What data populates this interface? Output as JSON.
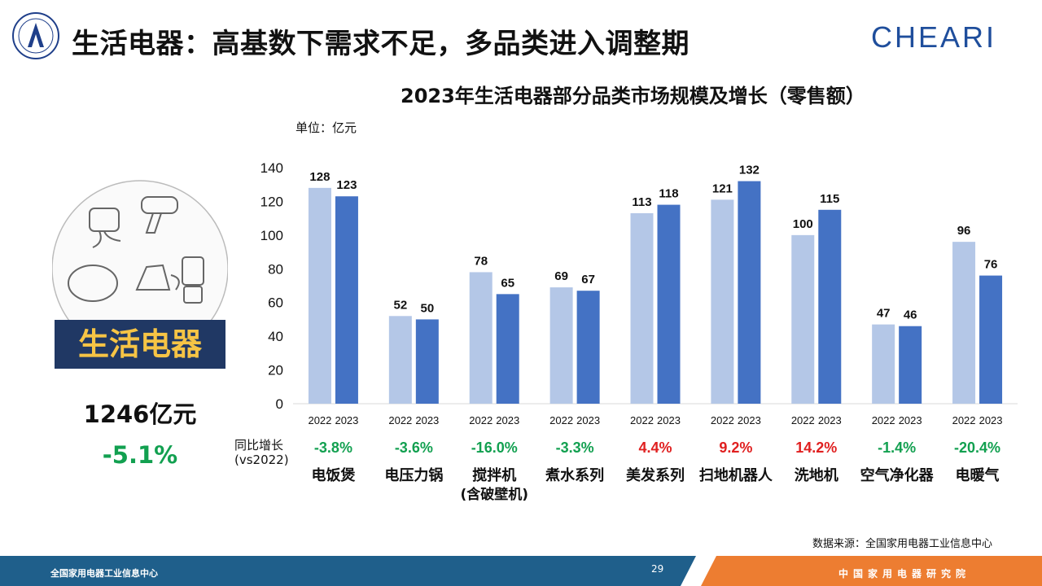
{
  "header": {
    "title": "生活电器：高基数下需求不足，多品类进入调整期",
    "brand": "CHEARI"
  },
  "left_panel": {
    "category": "生活电器",
    "total": "1246亿元",
    "growth": "-5.1%"
  },
  "yoy_label_line1": "同比增长",
  "yoy_label_line2": "(vs2022)",
  "source_note": "数据来源：全国家用电器工业信息中心",
  "footer": {
    "left_text": "全国家用电器工业信息中心",
    "right_text": "中国家用电器研究院",
    "page_number": "29"
  },
  "colors": {
    "series_2022": "#b4c7e7",
    "series_2023": "#4472c4",
    "positive": "#e02020",
    "negative": "#12a050",
    "dark_navy": "#203864",
    "footer_blue": "#1f5f8b",
    "footer_orange": "#ed7d31"
  },
  "chart_data": {
    "type": "bar",
    "title": "2023年生活电器部分品类市场规模及增长（零售额）",
    "unit": "单位：亿元",
    "ylim": [
      0,
      140
    ],
    "yticks": [
      0,
      20,
      40,
      60,
      80,
      100,
      120,
      140
    ],
    "grid": false,
    "categories": [
      "电饭煲",
      "电压力锅",
      "搅拌机",
      "煮水系列",
      "美发系列",
      "扫地机器人",
      "洗地机",
      "空气净化器",
      "电暖气"
    ],
    "category_sublabels": [
      "",
      "",
      "(含破壁机)",
      "",
      "",
      "",
      "",
      "",
      ""
    ],
    "series": [
      {
        "name": "2022",
        "values": [
          128,
          52,
          78,
          69,
          113,
          121,
          100,
          47,
          96
        ]
      },
      {
        "name": "2023",
        "values": [
          123,
          50,
          65,
          67,
          118,
          132,
          115,
          46,
          76
        ]
      }
    ],
    "yoy_growth": [
      "-3.8%",
      "-3.6%",
      "-16.0%",
      "-3.3%",
      "4.4%",
      "9.2%",
      "14.2%",
      "-1.4%",
      "-20.4%"
    ]
  }
}
